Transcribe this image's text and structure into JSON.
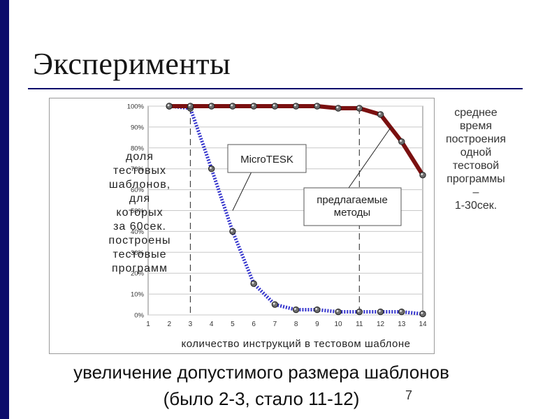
{
  "title": "Эксперименты",
  "left_caption_lines": [
    "доля",
    "тестовых",
    "шаблонов,",
    "для",
    "которых",
    "за 60сек.",
    "построены",
    "тестовые",
    "программ"
  ],
  "right_caption_lines": [
    "среднее",
    "время",
    "построения",
    "одной",
    "тестовой",
    "программы",
    "–",
    "1-30сек."
  ],
  "bottom_lines": [
    "увеличение допустимого размера шаблонов",
    "(было 2-3, стало 11-12)"
  ],
  "page_number": "7",
  "colors": {
    "accent": "#0d0d6b",
    "series_proposed": "#7a1010",
    "series_microtesk": "#3333cc"
  },
  "chart_data": {
    "type": "line",
    "x": [
      1,
      2,
      3,
      4,
      5,
      6,
      7,
      8,
      9,
      10,
      11,
      12,
      13,
      14
    ],
    "xlim": [
      1,
      14
    ],
    "ylim": [
      0,
      100
    ],
    "x_ticks": [
      "1",
      "2",
      "3",
      "4",
      "5",
      "6",
      "7",
      "8",
      "9",
      "10",
      "11",
      "12",
      "13",
      "14"
    ],
    "y_ticks": [
      "0%",
      "10%",
      "20%",
      "30%",
      "40%",
      "50%",
      "60%",
      "70%",
      "80%",
      "90%",
      "100%"
    ],
    "xlabel": "количество инструкций в тестовом шаблоне",
    "grid": true,
    "series": [
      {
        "name": "MicroTESK",
        "x": [
          2,
          3,
          4,
          5,
          6,
          7,
          8,
          9,
          10,
          11,
          12,
          13,
          14
        ],
        "values": [
          100,
          99,
          70,
          40,
          15,
          5,
          2.5,
          2.5,
          1.5,
          1.5,
          1.5,
          1.5,
          0.5
        ]
      },
      {
        "name": "предлагаемые методы",
        "x": [
          2,
          3,
          4,
          5,
          6,
          7,
          8,
          9,
          10,
          11,
          12,
          13,
          14
        ],
        "values": [
          100,
          100,
          100,
          100,
          100,
          100,
          100,
          100,
          99,
          99,
          96,
          83,
          67
        ]
      }
    ],
    "annotations": [
      {
        "text": "MicroTESK",
        "points_to_x": 5,
        "points_to_y": 50
      },
      {
        "text_lines": [
          "предлагаемые",
          "методы"
        ],
        "points_to_x": 12.5,
        "points_to_y": 90
      }
    ],
    "reference_lines_x": [
      3,
      11
    ]
  }
}
